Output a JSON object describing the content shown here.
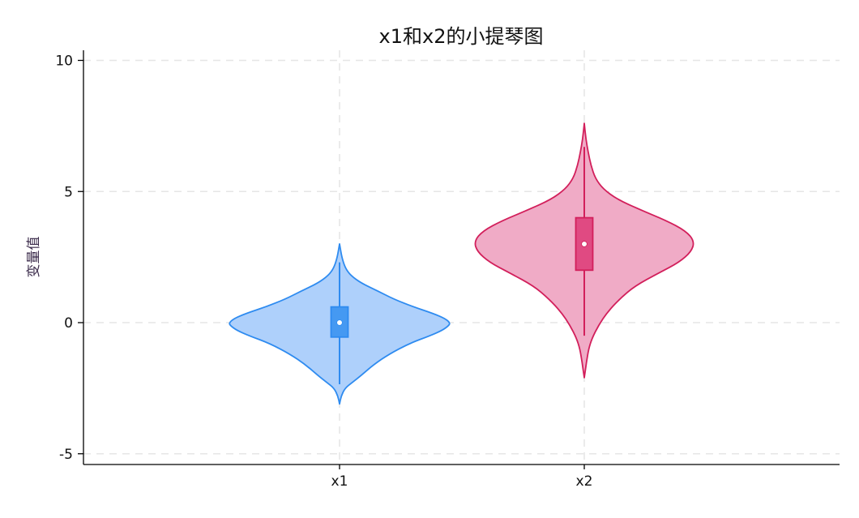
{
  "chart_data": {
    "type": "violin",
    "title": "x1和x2的小提琴图",
    "xlabel": "",
    "ylabel": "变量值",
    "ylim": [
      -5.5,
      10.2
    ],
    "yticks": [
      -5,
      0,
      5,
      10
    ],
    "ytick_labels": [
      "-5",
      "0",
      "5",
      "10"
    ],
    "categories": [
      "x1",
      "x2"
    ],
    "grid": true,
    "series": [
      {
        "category": "x1",
        "fill_color": "#aed0fb",
        "line_color": "#2e8bf0",
        "box_color": "#4599f2",
        "median": 0.0,
        "q1": -0.55,
        "q3": 0.6,
        "whisker_low": -2.35,
        "whisker_high": 2.3,
        "min": -3.1,
        "max": 3.0,
        "density": [
          [
            -3.1,
            0.0
          ],
          [
            -2.8,
            0.015
          ],
          [
            -2.5,
            0.05
          ],
          [
            -2.3,
            0.11
          ],
          [
            -2.0,
            0.2
          ],
          [
            -1.6,
            0.31
          ],
          [
            -1.2,
            0.45
          ],
          [
            -0.8,
            0.63
          ],
          [
            -0.5,
            0.82
          ],
          [
            -0.3,
            0.93
          ],
          [
            -0.1,
            0.995
          ],
          [
            0.0,
            1.0
          ],
          [
            0.15,
            0.96
          ],
          [
            0.35,
            0.85
          ],
          [
            0.6,
            0.67
          ],
          [
            0.9,
            0.49
          ],
          [
            1.2,
            0.35
          ],
          [
            1.5,
            0.2
          ],
          [
            1.8,
            0.1
          ],
          [
            2.1,
            0.05
          ],
          [
            2.5,
            0.02
          ],
          [
            3.0,
            0.0
          ]
        ]
      },
      {
        "category": "x2",
        "fill_color": "#f0abc6",
        "line_color": "#d21f5b",
        "box_color": "#e04a82",
        "median": 3.0,
        "q1": 2.0,
        "q3": 4.0,
        "whisker_low": -0.5,
        "whisker_high": 6.7,
        "min": -2.1,
        "max": 7.6,
        "density": [
          [
            -2.1,
            0.0
          ],
          [
            -1.5,
            0.02
          ],
          [
            -1.0,
            0.04
          ],
          [
            -0.6,
            0.07
          ],
          [
            -0.1,
            0.13
          ],
          [
            0.4,
            0.21
          ],
          [
            0.9,
            0.32
          ],
          [
            1.4,
            0.46
          ],
          [
            1.9,
            0.68
          ],
          [
            2.3,
            0.86
          ],
          [
            2.7,
            0.97
          ],
          [
            3.1,
            1.0
          ],
          [
            3.5,
            0.92
          ],
          [
            3.9,
            0.74
          ],
          [
            4.3,
            0.51
          ],
          [
            4.7,
            0.3
          ],
          [
            5.1,
            0.17
          ],
          [
            5.5,
            0.1
          ],
          [
            6.0,
            0.06
          ],
          [
            6.5,
            0.035
          ],
          [
            7.0,
            0.015
          ],
          [
            7.6,
            0.0
          ]
        ]
      }
    ]
  }
}
